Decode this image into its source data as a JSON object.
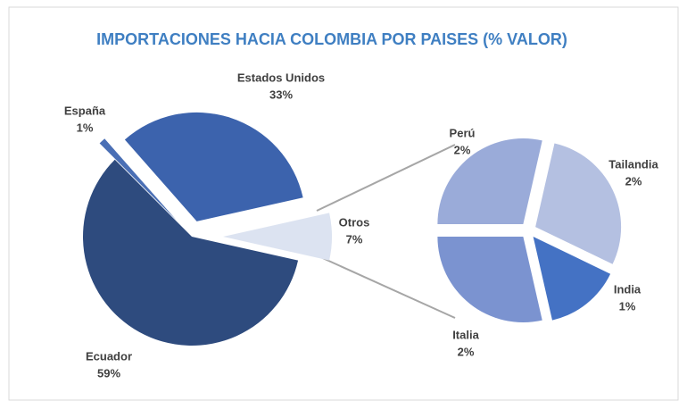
{
  "chart_data": [
    {
      "type": "pie",
      "title": "IMPORTACIONES HACIA COLOMBIA POR PAISES (% VALOR)",
      "categories": [
        "Otros",
        "Estados Unidos",
        "España",
        "Ecuador"
      ],
      "values": [
        7,
        33,
        1,
        59
      ],
      "value_labels": [
        "7%",
        "33%",
        "1%",
        "59%"
      ],
      "colors": [
        "#dce3f1",
        "#3c63ad",
        "#4a6fb5",
        "#2e4b7e"
      ]
    },
    {
      "type": "pie",
      "categories": [
        "Perú",
        "Tailandia",
        "India",
        "Italia"
      ],
      "values": [
        2,
        2,
        1,
        2
      ],
      "value_labels": [
        "2%",
        "2%",
        "1%",
        "2%"
      ],
      "colors": [
        "#9aabd9",
        "#b4c0e1",
        "#4472c4",
        "#7b93d0"
      ]
    }
  ]
}
